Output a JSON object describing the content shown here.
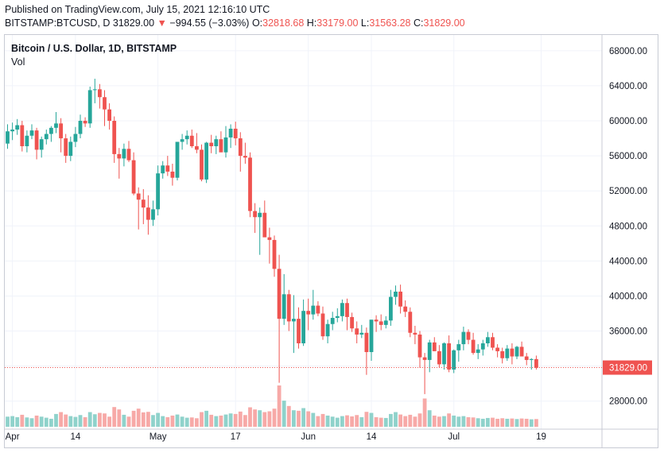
{
  "header": {
    "published": "Published on TradingView.com, July 15, 2021 12:16:10 UTC",
    "symbol": "BITSTAMP:BTCUSD, D",
    "last": "31829.00",
    "arrow": "▼",
    "change": "−994.55 (−3.03%)",
    "o_label": "O:",
    "o_value": "32818.68",
    "h_label": "H:",
    "h_value": "33179.00",
    "l_label": "L:",
    "l_value": "31563.28",
    "c_label": "C:",
    "c_value": "31829.00"
  },
  "legend": {
    "title": "Bitcoin / U.S. Dollar, 1D, BITSTAMP",
    "volume_label": "Vol"
  },
  "colors": {
    "up": "#26a69a",
    "down": "#ef5350",
    "up_volume": "#8fd2cb",
    "down_volume": "#f7a9a7",
    "grid": "#f0f3fa",
    "axis_text": "#131722"
  },
  "chart_data": {
    "type": "candlestick",
    "title": "Bitcoin / U.S. Dollar, 1D, BITSTAMP",
    "y_ticks": [
      "28000.00",
      "32000.00",
      "36000.00",
      "40000.00",
      "44000.00",
      "48000.00",
      "52000.00",
      "56000.00",
      "60000.00",
      "64000.00",
      "68000.00"
    ],
    "ylim": [
      24800,
      69800
    ],
    "x_ticks": [
      {
        "label": "Apr",
        "date": "2021-04-01"
      },
      {
        "label": "14",
        "date": "2021-04-14"
      },
      {
        "label": "May",
        "date": "2021-05-01"
      },
      {
        "label": "17",
        "date": "2021-05-17"
      },
      {
        "label": "Jun",
        "date": "2021-06-01"
      },
      {
        "label": "14",
        "date": "2021-06-14"
      },
      {
        "label": "Jul",
        "date": "2021-07-01"
      },
      {
        "label": "19",
        "date": "2021-07-19"
      }
    ],
    "last_price_label": "31829.00",
    "grid": true,
    "series": [
      {
        "start_date": "2021-03-31",
        "ohlcv": [
          [
            57400,
            59600,
            56800,
            58800,
            38
          ],
          [
            58800,
            59800,
            57800,
            59000,
            40
          ],
          [
            59000,
            60200,
            58400,
            59500,
            36
          ],
          [
            59500,
            60000,
            56500,
            57100,
            45
          ],
          [
            57100,
            58900,
            56400,
            58300,
            35
          ],
          [
            58300,
            59600,
            57900,
            58900,
            32
          ],
          [
            58900,
            59200,
            55600,
            56700,
            42
          ],
          [
            56700,
            58200,
            55800,
            57900,
            38
          ],
          [
            57900,
            59000,
            57300,
            58500,
            34
          ],
          [
            58500,
            59400,
            57600,
            59200,
            30
          ],
          [
            59200,
            61000,
            58600,
            59700,
            48
          ],
          [
            59700,
            60300,
            56400,
            58000,
            55
          ],
          [
            58000,
            58500,
            55200,
            56000,
            46
          ],
          [
            56000,
            58200,
            55400,
            57600,
            40
          ],
          [
            57600,
            59300,
            57000,
            58500,
            37
          ],
          [
            58500,
            60700,
            58000,
            60000,
            44
          ],
          [
            60000,
            60400,
            59300,
            59700,
            36
          ],
          [
            59700,
            63900,
            59200,
            63500,
            55
          ],
          [
            63500,
            64800,
            62000,
            63600,
            47
          ],
          [
            63600,
            64200,
            61400,
            62700,
            52
          ],
          [
            62700,
            63500,
            59400,
            61300,
            50
          ],
          [
            61300,
            62000,
            59000,
            60000,
            38
          ],
          [
            60000,
            60500,
            55200,
            56200,
            74
          ],
          [
            56200,
            56900,
            53400,
            55700,
            65
          ],
          [
            55700,
            57400,
            54800,
            56800,
            45
          ],
          [
            56800,
            57700,
            55300,
            55500,
            38
          ],
          [
            55500,
            56400,
            51500,
            51700,
            60
          ],
          [
            51700,
            52400,
            47600,
            51000,
            68
          ],
          [
            51000,
            52200,
            48200,
            50100,
            54
          ],
          [
            50100,
            51500,
            47000,
            48700,
            56
          ],
          [
            48700,
            50900,
            48000,
            49900,
            44
          ],
          [
            49900,
            54900,
            49200,
            54000,
            52
          ],
          [
            54000,
            55400,
            53400,
            54900,
            40
          ],
          [
            54900,
            56000,
            53700,
            54200,
            36
          ],
          [
            54200,
            55100,
            52600,
            53500,
            42
          ],
          [
            53500,
            56300,
            53200,
            57600,
            46
          ],
          [
            57600,
            58500,
            56700,
            57900,
            38
          ],
          [
            57900,
            58900,
            57300,
            58300,
            34
          ],
          [
            58300,
            59000,
            56900,
            57100,
            35
          ],
          [
            57100,
            58600,
            56300,
            56700,
            32
          ],
          [
            56700,
            57300,
            53100,
            53300,
            55
          ],
          [
            53300,
            57600,
            52900,
            57500,
            60
          ],
          [
            57500,
            58400,
            56300,
            57100,
            45
          ],
          [
            57100,
            58300,
            56200,
            57900,
            40
          ],
          [
            57900,
            58800,
            56800,
            56400,
            42
          ],
          [
            56400,
            59400,
            55800,
            58100,
            46
          ],
          [
            58100,
            59600,
            56900,
            59100,
            50
          ],
          [
            59100,
            59900,
            57200,
            58000,
            48
          ],
          [
            58000,
            58700,
            54200,
            56000,
            57
          ],
          [
            56000,
            57500,
            55100,
            55800,
            44
          ],
          [
            55800,
            56400,
            49000,
            49700,
            73
          ],
          [
            49700,
            50600,
            47200,
            49000,
            65
          ],
          [
            49000,
            50100,
            44700,
            49500,
            62
          ],
          [
            49500,
            50900,
            48000,
            46700,
            55
          ],
          [
            46700,
            47800,
            43700,
            46400,
            58
          ],
          [
            46400,
            46900,
            42200,
            43100,
            68
          ],
          [
            43100,
            44700,
            30100,
            37400,
            155
          ],
          [
            37400,
            42500,
            36700,
            40200,
            98
          ],
          [
            40200,
            40700,
            36000,
            37100,
            78
          ],
          [
            37100,
            40100,
            33500,
            37400,
            62
          ],
          [
            37400,
            38700,
            34000,
            34600,
            60
          ],
          [
            34600,
            39600,
            34300,
            38300,
            70
          ],
          [
            38300,
            39700,
            36100,
            37900,
            58
          ],
          [
            37900,
            40700,
            37300,
            38900,
            52
          ],
          [
            38900,
            39400,
            37700,
            38000,
            40
          ],
          [
            38000,
            38800,
            35000,
            35400,
            48
          ],
          [
            35400,
            37300,
            34600,
            36800,
            42
          ],
          [
            36800,
            38200,
            36100,
            37500,
            38
          ],
          [
            37500,
            38600,
            37000,
            37700,
            34
          ],
          [
            37700,
            39600,
            37100,
            39200,
            40
          ],
          [
            39200,
            39700,
            36100,
            37600,
            43
          ],
          [
            37600,
            38100,
            35900,
            36300,
            39
          ],
          [
            36300,
            37100,
            34600,
            35600,
            44
          ],
          [
            35600,
            36700,
            35200,
            35800,
            36
          ],
          [
            35800,
            36400,
            31000,
            33600,
            56
          ],
          [
            33600,
            37200,
            32600,
            37300,
            52
          ],
          [
            37300,
            37800,
            35900,
            37100,
            36
          ],
          [
            37100,
            37900,
            36100,
            36700,
            34
          ],
          [
            36700,
            37700,
            36300,
            37200,
            33
          ],
          [
            37200,
            40700,
            36600,
            39900,
            48
          ],
          [
            39900,
            41200,
            39000,
            40500,
            55
          ],
          [
            40500,
            41300,
            38000,
            38800,
            46
          ],
          [
            38800,
            39500,
            37600,
            38200,
            40
          ],
          [
            38200,
            38700,
            35300,
            35800,
            45
          ],
          [
            35800,
            36600,
            34500,
            35600,
            38
          ],
          [
            35600,
            36000,
            31800,
            33000,
            50
          ],
          [
            33000,
            33500,
            28800,
            32700,
            106
          ],
          [
            32700,
            35000,
            31300,
            34700,
            62
          ],
          [
            34700,
            35300,
            33700,
            33700,
            42
          ],
          [
            33700,
            34400,
            31800,
            32200,
            38
          ],
          [
            32200,
            34700,
            31600,
            34600,
            40
          ],
          [
            34600,
            35500,
            31300,
            31600,
            50
          ],
          [
            31600,
            33900,
            31200,
            33800,
            42
          ],
          [
            33800,
            35000,
            32500,
            34500,
            38
          ],
          [
            34500,
            36500,
            33800,
            35900,
            40
          ],
          [
            35900,
            36200,
            34500,
            35000,
            36
          ],
          [
            35000,
            35800,
            33300,
            33500,
            35
          ],
          [
            33500,
            34500,
            32800,
            33900,
            32
          ],
          [
            33900,
            35000,
            33200,
            34600,
            30
          ],
          [
            34600,
            35900,
            34200,
            35300,
            33
          ],
          [
            35300,
            35800,
            33800,
            34100,
            34
          ],
          [
            34100,
            34500,
            33000,
            33700,
            30
          ],
          [
            33700,
            34100,
            32300,
            32900,
            32
          ],
          [
            32900,
            34400,
            32600,
            34000,
            30
          ],
          [
            34000,
            34600,
            32200,
            33100,
            31
          ],
          [
            33100,
            34300,
            32800,
            34200,
            29
          ],
          [
            34200,
            34800,
            33700,
            33100,
            31
          ],
          [
            33100,
            33500,
            32100,
            32700,
            30
          ],
          [
            32700,
            32900,
            31600,
            32800,
            28
          ],
          [
            32800,
            33200,
            31600,
            31800,
            29
          ]
        ]
      }
    ]
  }
}
